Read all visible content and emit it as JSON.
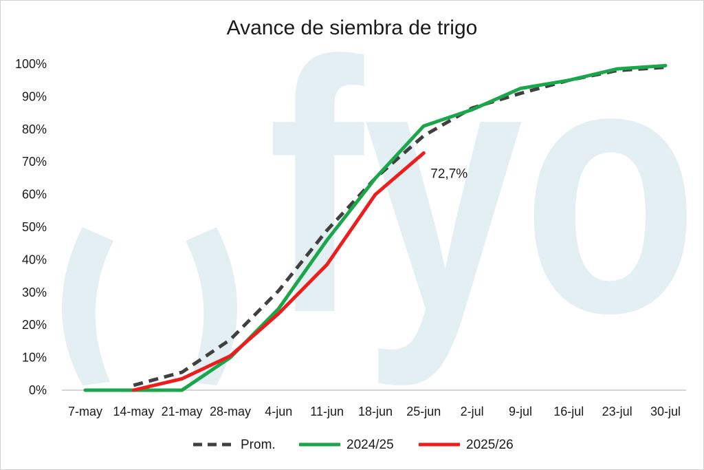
{
  "watermark": {
    "text": "fyo",
    "color": "#e3eff2"
  },
  "chart_data": {
    "type": "line",
    "title": "Avance de siembra de trigo",
    "xlabel": "",
    "ylabel": "",
    "categories": [
      "7-may",
      "14-may",
      "21-may",
      "28-may",
      "4-jun",
      "11-jun",
      "18-jun",
      "25-jun",
      "2-jul",
      "9-jul",
      "16-jul",
      "23-jul",
      "30-jul"
    ],
    "ylim": [
      0,
      100
    ],
    "yticks": [
      "0%",
      "10%",
      "20%",
      "30%",
      "40%",
      "50%",
      "60%",
      "70%",
      "80%",
      "90%",
      "100%"
    ],
    "grid": false,
    "legend_position": "bottom",
    "series": [
      {
        "name": "Prom.",
        "color": "#404040",
        "dash": true,
        "values": [
          null,
          1.5,
          5.5,
          15.5,
          30.5,
          49,
          65,
          78,
          86.5,
          91,
          95,
          98,
          99
        ]
      },
      {
        "name": "2024/25",
        "color": "#1aa64a",
        "dash": false,
        "values": [
          0,
          0,
          0,
          10,
          25,
          46,
          65,
          81,
          86,
          92.5,
          95,
          98.5,
          99.5
        ]
      },
      {
        "name": "2025/26",
        "color": "#ee1c1c",
        "dash": false,
        "values": [
          null,
          0,
          3.5,
          10.5,
          23.5,
          38.5,
          60,
          72.7,
          null,
          null,
          null,
          null,
          null
        ]
      }
    ],
    "annotations": [
      {
        "text": "72,7%",
        "series": "2025/26",
        "category": "25-jun"
      }
    ]
  }
}
